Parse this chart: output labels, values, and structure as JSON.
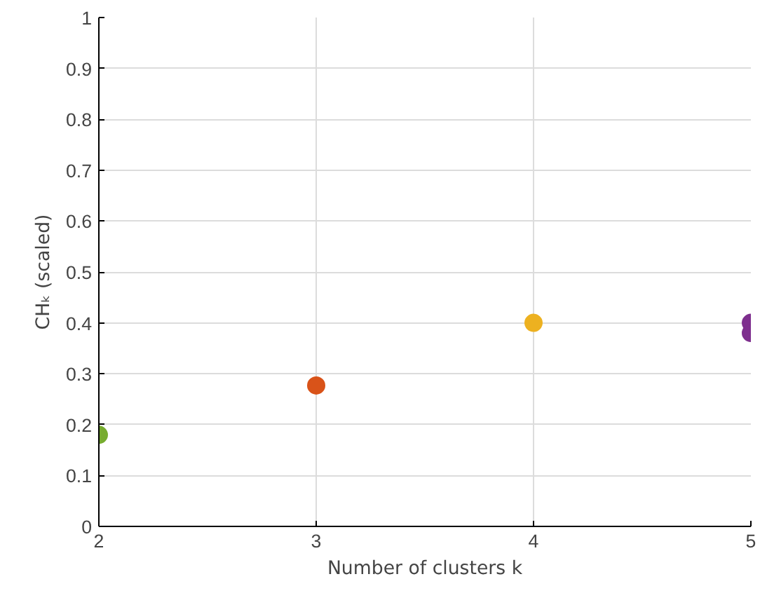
{
  "chart_data": {
    "type": "scatter",
    "xlabel": "Number of clusters k",
    "ylabel": "CHₖ (scaled)",
    "series": [
      {
        "color": "#77ac30",
        "x": [
          2
        ],
        "values": [
          0.18
        ]
      },
      {
        "color": "#d95319",
        "x": [
          3
        ],
        "values": [
          0.277
        ]
      },
      {
        "color": "#edb120",
        "x": [
          4
        ],
        "values": [
          0.4
        ]
      },
      {
        "color": "#7e2f8e",
        "x": [
          5,
          5
        ],
        "values": [
          0.4,
          0.38
        ]
      }
    ],
    "xlim": [
      2,
      5
    ],
    "xticks": [
      2,
      3,
      4,
      5
    ],
    "ylim": [
      0,
      1
    ],
    "yticks": [
      0,
      0.1,
      0.2,
      0.3,
      0.4,
      0.5,
      0.6,
      0.7,
      0.8,
      0.9,
      1
    ],
    "grid": true,
    "marker": "circle"
  }
}
